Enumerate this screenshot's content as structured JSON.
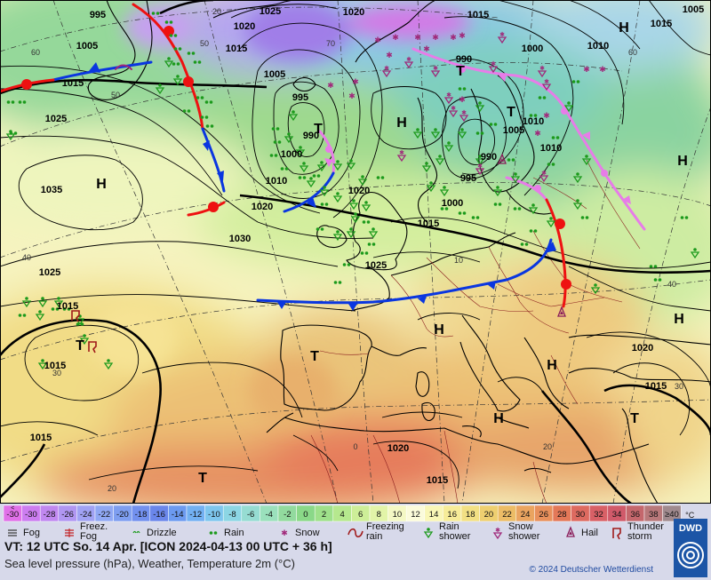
{
  "map": {
    "pressure_labels": [
      {
        "text": "995",
        "kind": "isobar"
      },
      {
        "text": "1005",
        "kind": "isobar"
      },
      {
        "text": "1015",
        "kind": "isobar"
      },
      {
        "text": "1025",
        "kind": "isobar"
      },
      {
        "text": "1035",
        "kind": "isobar"
      },
      {
        "text": "1025",
        "kind": "isobar"
      },
      {
        "text": "1015",
        "kind": "isobar"
      },
      {
        "text": "1015",
        "kind": "isobar"
      },
      {
        "text": "1025",
        "kind": "isobar"
      },
      {
        "text": "1020",
        "kind": "isobar"
      },
      {
        "text": "1015",
        "kind": "isobar"
      },
      {
        "text": "1020",
        "kind": "isobar"
      },
      {
        "text": "1015",
        "kind": "isobar"
      },
      {
        "text": "1010",
        "kind": "isobar"
      },
      {
        "text": "1000",
        "kind": "isobar"
      },
      {
        "text": "1005",
        "kind": "isobar"
      },
      {
        "text": "995",
        "kind": "isobar"
      },
      {
        "text": "990",
        "kind": "isobar"
      },
      {
        "text": "1000",
        "kind": "isobar"
      },
      {
        "text": "1010",
        "kind": "isobar"
      },
      {
        "text": "1020",
        "kind": "isobar"
      },
      {
        "text": "1030",
        "kind": "isobar"
      },
      {
        "text": "1025",
        "kind": "isobar"
      },
      {
        "text": "1020",
        "kind": "isobar"
      },
      {
        "text": "1015",
        "kind": "isobar"
      },
      {
        "text": "1000",
        "kind": "isobar"
      },
      {
        "text": "990",
        "kind": "isobar"
      },
      {
        "text": "990",
        "kind": "isobar"
      },
      {
        "text": "995",
        "kind": "isobar"
      },
      {
        "text": "1005",
        "kind": "isobar"
      },
      {
        "text": "1015",
        "kind": "isobar"
      },
      {
        "text": "1010",
        "kind": "isobar"
      },
      {
        "text": "1010",
        "kind": "isobar"
      },
      {
        "text": "1005",
        "kind": "isobar"
      },
      {
        "text": "1020",
        "kind": "isobar"
      },
      {
        "text": "1015",
        "kind": "isobar"
      },
      {
        "text": "1015",
        "kind": "isobar"
      },
      {
        "text": "1020",
        "kind": "isobar"
      },
      {
        "text": "1015",
        "kind": "isobar"
      }
    ],
    "systems": [
      {
        "text": "H",
        "kind": "high"
      },
      {
        "text": "H",
        "kind": "high"
      },
      {
        "text": "H",
        "kind": "high"
      },
      {
        "text": "H",
        "kind": "high"
      },
      {
        "text": "H",
        "kind": "high"
      },
      {
        "text": "H",
        "kind": "high"
      },
      {
        "text": "H",
        "kind": "high"
      },
      {
        "text": "H",
        "kind": "high"
      },
      {
        "text": "T",
        "kind": "low"
      },
      {
        "text": "T",
        "kind": "low"
      },
      {
        "text": "T",
        "kind": "low"
      },
      {
        "text": "T",
        "kind": "low"
      },
      {
        "text": "T",
        "kind": "low"
      },
      {
        "text": "T",
        "kind": "low"
      },
      {
        "text": "T",
        "kind": "low"
      }
    ],
    "grid_labels": [
      "60",
      "70",
      "50",
      "50",
      "60",
      "40",
      "40",
      "30",
      "30",
      "20",
      "20",
      "0",
      "20",
      "10"
    ],
    "colors": {
      "cold_front": "#0a36e0",
      "warm_front": "#ee1111",
      "occluded_front": "#e77ce8",
      "isobar": "#000000",
      "rain_symbol": "#1c9a1c",
      "snow_symbol": "#a0287a"
    }
  },
  "legend": {
    "temp_scale": [
      "-30",
      "-30",
      "-28",
      "-26",
      "-24",
      "-22",
      "-20",
      "-18",
      "-16",
      "-14",
      "-12",
      "-10",
      "-8",
      "-6",
      "-4",
      "-2",
      "0",
      "2",
      "4",
      "6",
      "8",
      "10",
      "12",
      "14",
      "16",
      "18",
      "20",
      "22",
      "24",
      "26",
      "28",
      "30",
      "32",
      "34",
      "36",
      "38",
      "≥40"
    ],
    "temp_first_top": "<",
    "temp_unit": "°C",
    "temp_colors": [
      "#e070e8",
      "#cc7df0",
      "#c088f0",
      "#b096f2",
      "#a0a2f4",
      "#90a8f4",
      "#7e9ef0",
      "#7290ee",
      "#6a86ea",
      "#6c9af0",
      "#72b0f2",
      "#7ec6ee",
      "#8cd6e4",
      "#96dcd2",
      "#9ae0bc",
      "#92da9e",
      "#8ad888",
      "#9ee08a",
      "#b6e88e",
      "#cdee98",
      "#e2f4a8",
      "#f4f8c4",
      "#fbfbdb",
      "#f9f6b6",
      "#f6ec98",
      "#f2e084",
      "#eecf70",
      "#ecbc66",
      "#eaa460",
      "#e8905c",
      "#e37858",
      "#dd6a60",
      "#d86066",
      "#d05a6a",
      "#c4676c",
      "#b8787a",
      "#a08a8e"
    ],
    "weather_items": [
      {
        "label": "Fog",
        "icon": "fog-icon"
      },
      {
        "label": "Freez. Fog",
        "icon": "freezing-fog-icon"
      },
      {
        "label": "Drizzle",
        "icon": "drizzle-icon"
      },
      {
        "label": "Rain",
        "icon": "rain-icon"
      },
      {
        "label": "Snow",
        "icon": "snow-icon"
      },
      {
        "label": "Freezing rain",
        "icon": "freezing-rain-icon"
      },
      {
        "label": "Rain shower",
        "icon": "rain-shower-icon"
      },
      {
        "label": "Snow shower",
        "icon": "snow-shower-icon"
      },
      {
        "label": "Hail",
        "icon": "hail-icon"
      },
      {
        "label": "Thunder storm",
        "icon": "thunderstorm-icon"
      }
    ],
    "valid_time": "VT: 12 UTC So.  14 Apr. [ICON 2024-04-13  00 UTC + 36 h]",
    "description": "Sea level pressure (hPa), Weather, Temperature 2m (°C)",
    "copyright": "© 2024 Deutscher Wetterdienst",
    "logo_text": "DWD"
  }
}
